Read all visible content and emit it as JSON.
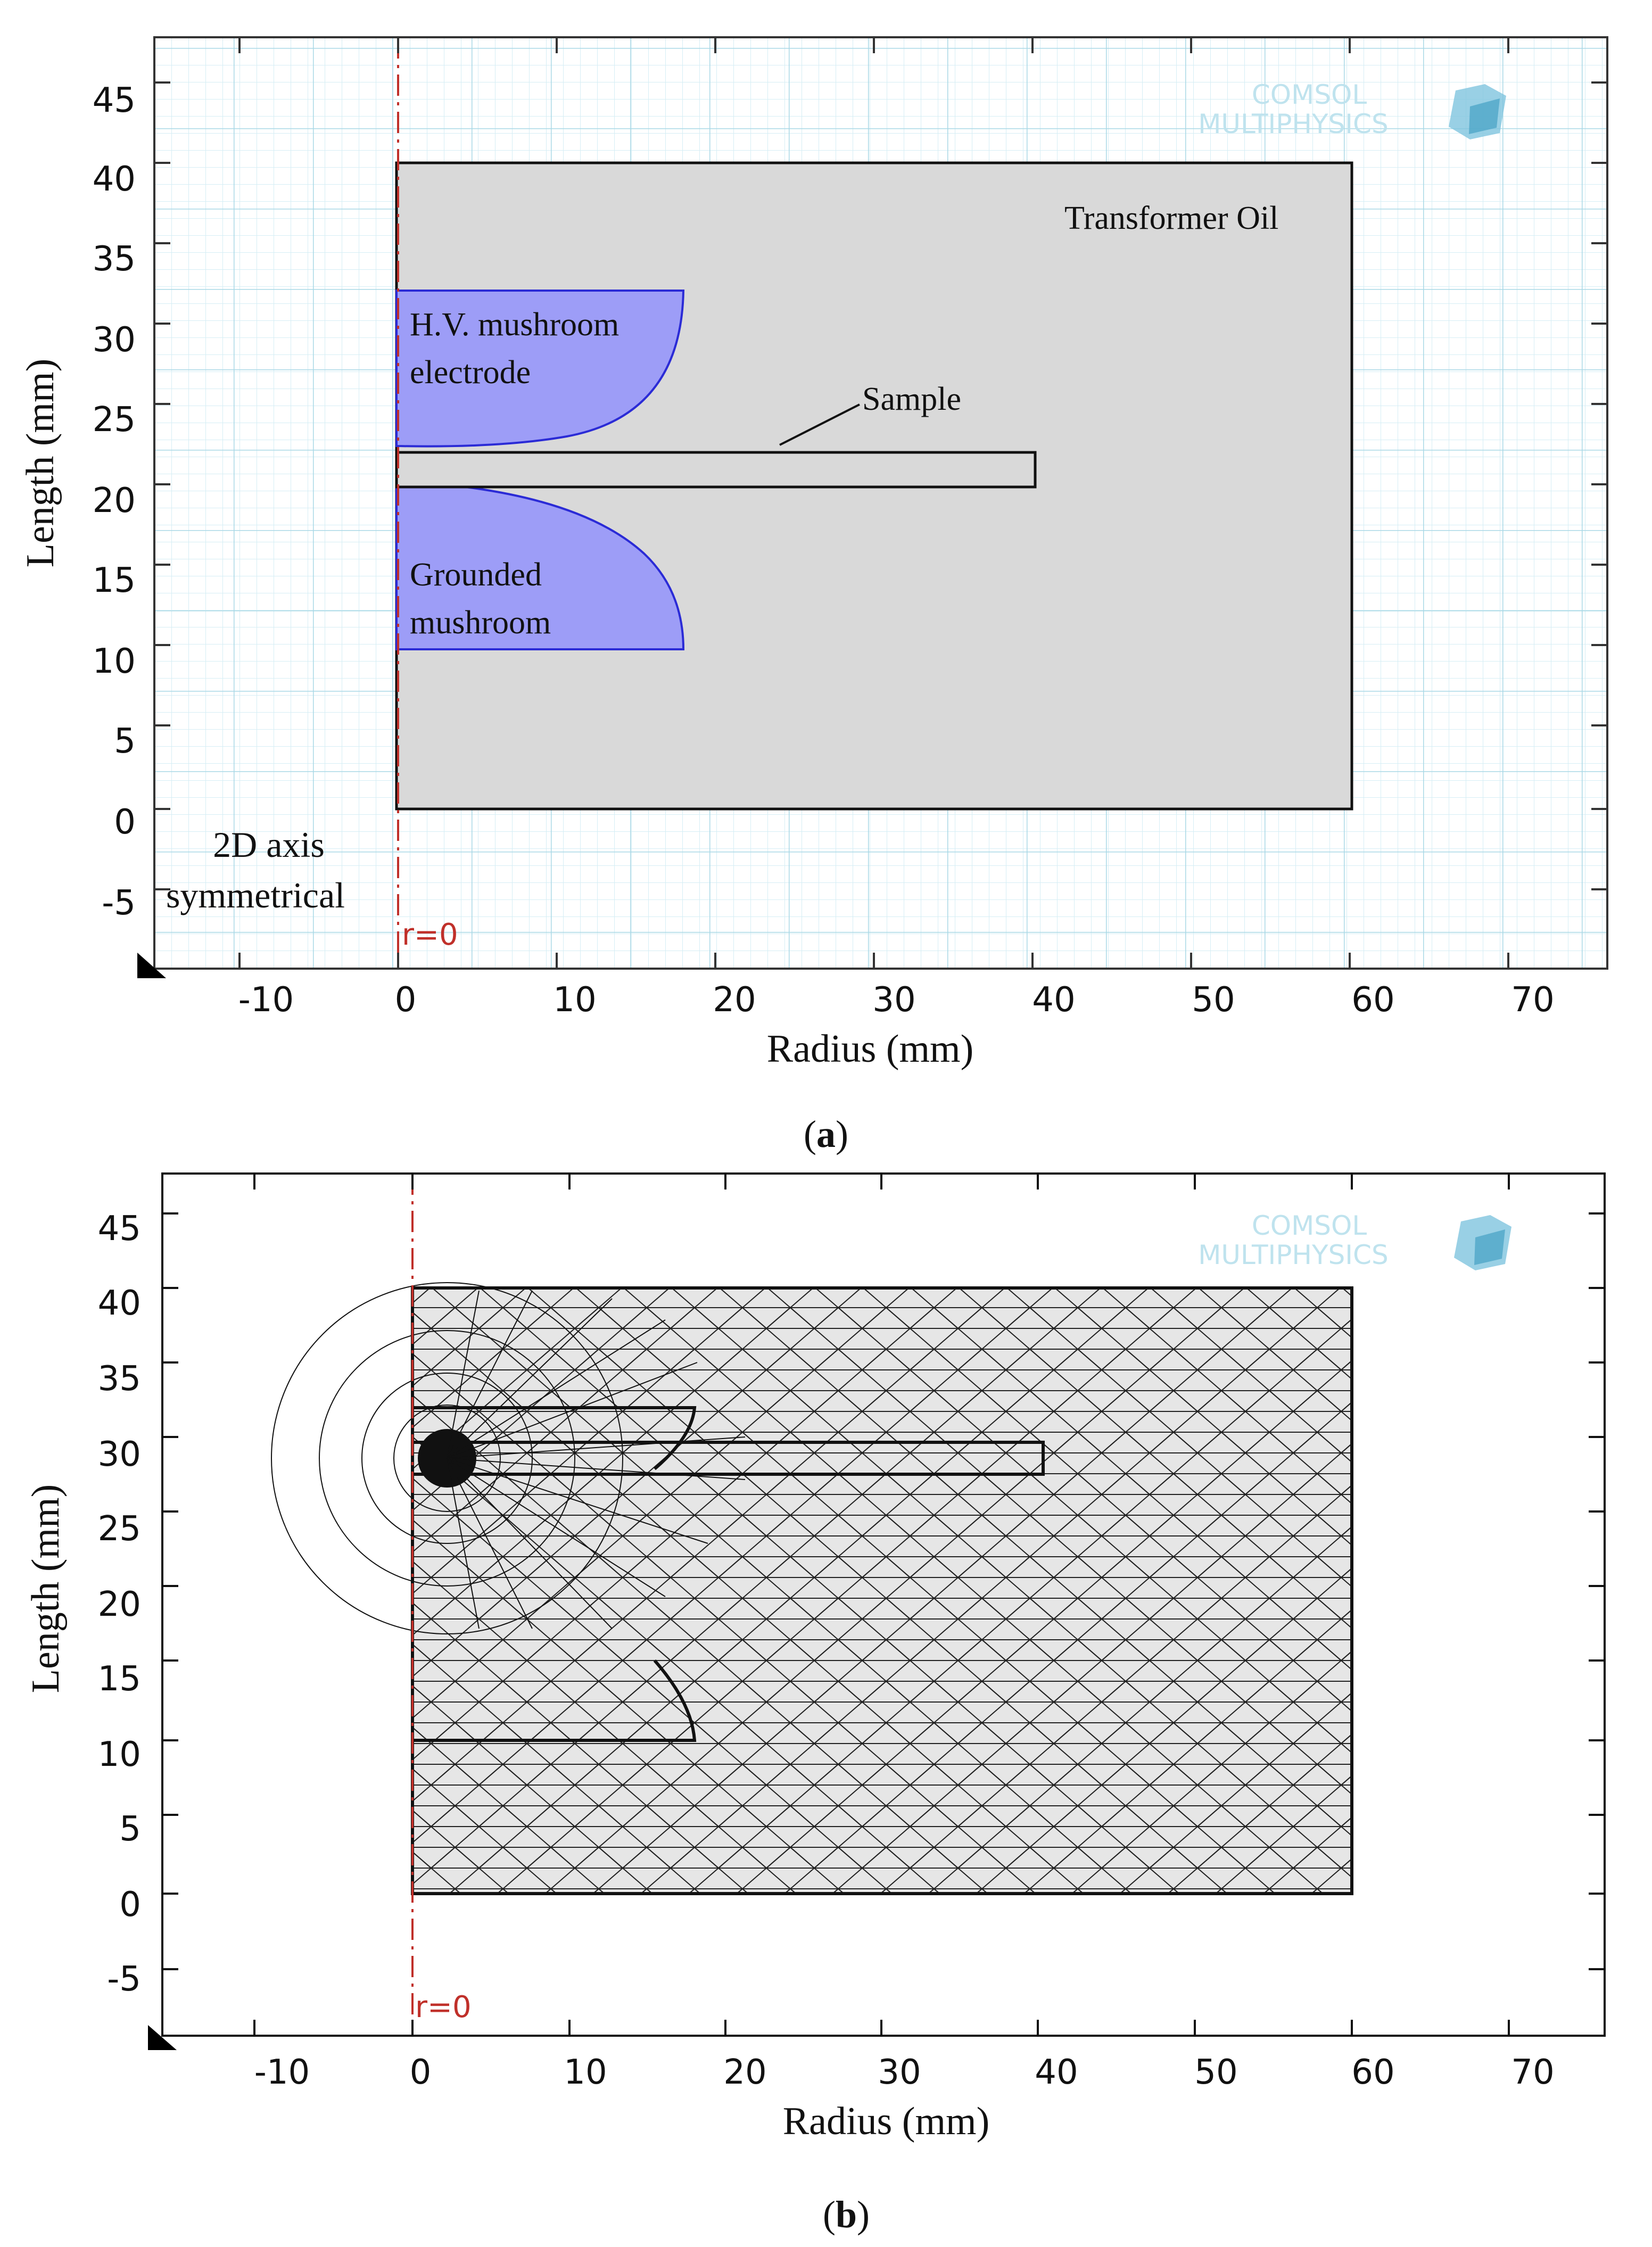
{
  "figure_a": {
    "caption_letter": "a",
    "x_axis_label": "Radius (mm)",
    "y_axis_label": "Length (mm)",
    "x_ticks": [
      "-10",
      "0",
      "10",
      "20",
      "30",
      "40",
      "50",
      "60",
      "70"
    ],
    "y_ticks": [
      "45",
      "40",
      "35",
      "30",
      "25",
      "20",
      "15",
      "10",
      "5",
      "0",
      "-5"
    ],
    "watermark_line1": "COMSOL",
    "watermark_line2": "MULTIPHYSICS",
    "label_oil": "Transformer Oil",
    "label_hv_line1": "H.V. mushroom",
    "label_hv_line2": "electrode",
    "label_sample": "Sample",
    "label_ground_line1": "Grounded",
    "label_ground_line2": "mushroom",
    "label_axis_line1": "2D axis",
    "label_axis_line2": "symmetrical",
    "label_r0": "r=0",
    "colors": {
      "electrode": "#9d9df7",
      "oil": "#d9d9d9",
      "grid": "#c9e7f0",
      "axis_line": "#c0302a"
    }
  },
  "figure_b": {
    "caption_letter": "b",
    "x_axis_label": "Radius (mm)",
    "y_axis_label": "Length (mm)",
    "x_ticks": [
      "-10",
      "0",
      "10",
      "20",
      "30",
      "40",
      "50",
      "60",
      "70"
    ],
    "y_ticks": [
      "45",
      "40",
      "35",
      "30",
      "25",
      "20",
      "15",
      "10",
      "5",
      "0",
      "-5"
    ],
    "watermark_line1": "COMSOL",
    "watermark_line2": "MULTIPHYSICS",
    "label_r0": "r=0",
    "colors": {
      "mesh_fill": "#e6e6e6",
      "mesh_line": "#111111"
    }
  }
}
